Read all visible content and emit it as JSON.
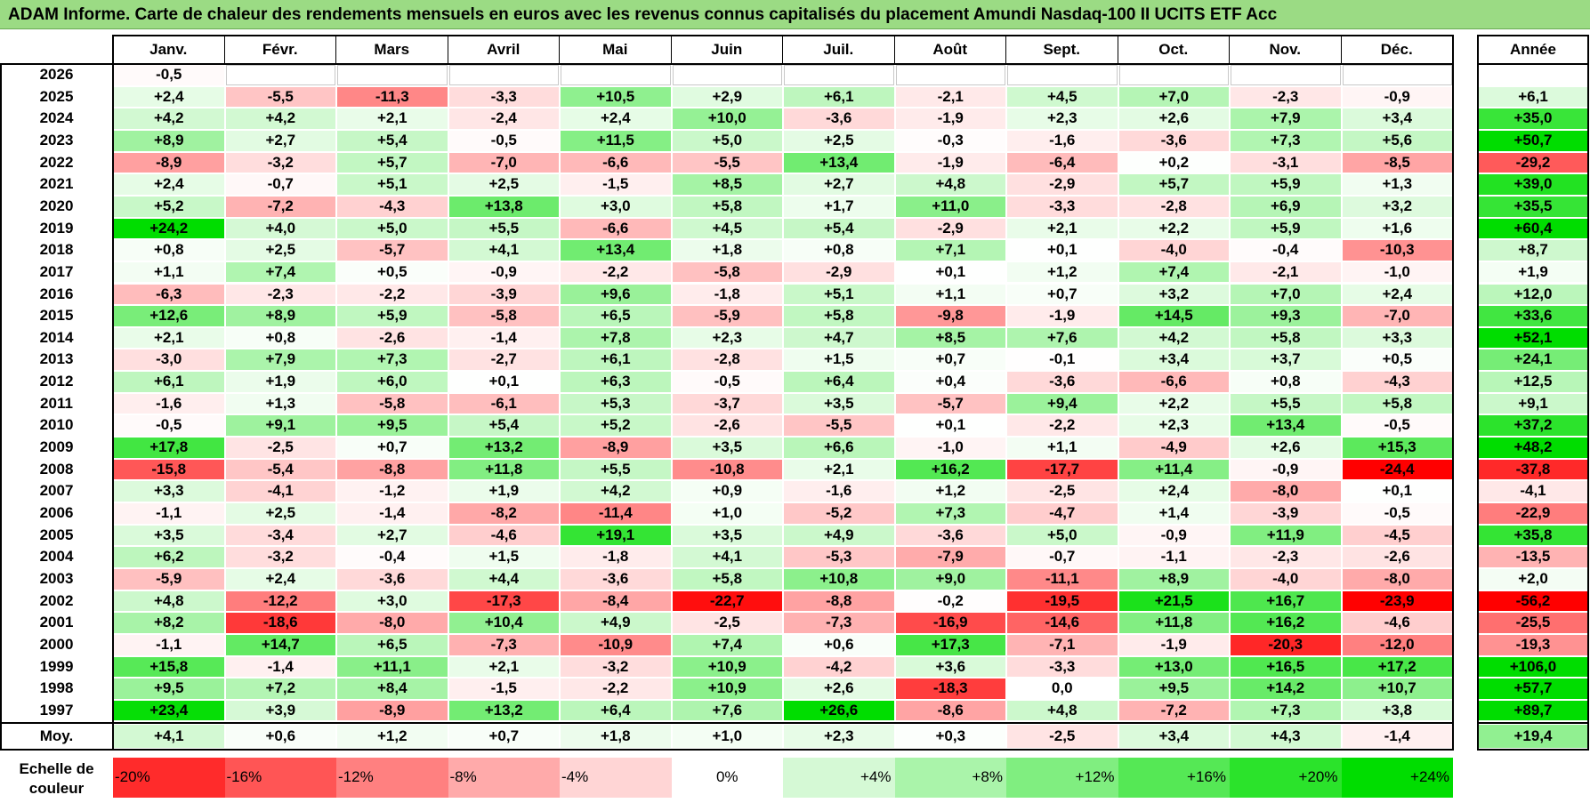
{
  "title": "ADAM Informe. Carte de chaleur des rendements mensuels en euros avec les revenus connus capitalisés du placement Amundi Nasdaq-100 II UCITS ETF Acc",
  "colors": {
    "positive_max": "#00dd00",
    "negative_max": "#ff0000",
    "neutral": "#ffffff",
    "title_bg": "#9bdb84"
  },
  "chart_data": {
    "type": "heatmap",
    "title": "ADAM Informe. Carte de chaleur des rendements mensuels en euros avec les revenus connus capitalisés du placement Amundi Nasdaq-100 II UCITS ETF Acc",
    "months": [
      "Janv.",
      "Févr.",
      "Mars",
      "Avril",
      "Mai",
      "Juin",
      "Juil.",
      "Août",
      "Sept.",
      "Oct.",
      "Nov.",
      "Déc."
    ],
    "year_label": "Année",
    "avg_label": "Moy.",
    "rows": [
      {
        "year": "2026",
        "months": [
          "-0,5",
          "",
          "",
          "",
          "",
          "",
          "",
          "",
          "",
          "",
          "",
          ""
        ],
        "annual": ""
      },
      {
        "year": "2025",
        "months": [
          "+2,4",
          "-5,5",
          "-11,3",
          "-3,3",
          "+10,5",
          "+2,9",
          "+6,1",
          "-2,1",
          "+4,5",
          "+7,0",
          "-2,3",
          "-0,9"
        ],
        "annual": "+6,1"
      },
      {
        "year": "2024",
        "months": [
          "+4,2",
          "+4,2",
          "+2,1",
          "-2,4",
          "+2,4",
          "+10,0",
          "-3,6",
          "-1,9",
          "+2,3",
          "+2,6",
          "+7,9",
          "+3,4"
        ],
        "annual": "+35,0"
      },
      {
        "year": "2023",
        "months": [
          "+8,9",
          "+2,7",
          "+5,4",
          "-0,5",
          "+11,5",
          "+5,0",
          "+2,5",
          "-0,3",
          "-1,6",
          "-3,6",
          "+7,3",
          "+5,6"
        ],
        "annual": "+50,7"
      },
      {
        "year": "2022",
        "months": [
          "-8,9",
          "-3,2",
          "+5,7",
          "-7,0",
          "-6,6",
          "-5,5",
          "+13,4",
          "-1,9",
          "-6,4",
          "+0,2",
          "-3,1",
          "-8,5"
        ],
        "annual": "-29,2"
      },
      {
        "year": "2021",
        "months": [
          "+2,4",
          "-0,7",
          "+5,1",
          "+2,5",
          "-1,5",
          "+8,5",
          "+2,7",
          "+4,8",
          "-2,9",
          "+5,7",
          "+5,9",
          "+1,3"
        ],
        "annual": "+39,0"
      },
      {
        "year": "2020",
        "months": [
          "+5,2",
          "-7,2",
          "-4,3",
          "+13,8",
          "+3,0",
          "+5,8",
          "+1,7",
          "+11,0",
          "-3,3",
          "-2,8",
          "+6,9",
          "+3,2"
        ],
        "annual": "+35,5"
      },
      {
        "year": "2019",
        "months": [
          "+24,2",
          "+4,0",
          "+5,0",
          "+5,5",
          "-6,6",
          "+4,5",
          "+5,4",
          "-2,9",
          "+2,1",
          "+2,2",
          "+5,9",
          "+1,6"
        ],
        "annual": "+60,4"
      },
      {
        "year": "2018",
        "months": [
          "+0,8",
          "+2,5",
          "-5,7",
          "+4,1",
          "+13,4",
          "+1,8",
          "+0,8",
          "+7,1",
          "+0,1",
          "-4,0",
          "-0,4",
          "-10,3"
        ],
        "annual": "+8,7"
      },
      {
        "year": "2017",
        "months": [
          "+1,1",
          "+7,4",
          "+0,5",
          "-0,9",
          "-2,2",
          "-5,8",
          "-2,9",
          "+0,1",
          "+1,2",
          "+7,4",
          "-2,1",
          "-1,0"
        ],
        "annual": "+1,9"
      },
      {
        "year": "2016",
        "months": [
          "-6,3",
          "-2,3",
          "-2,2",
          "-3,9",
          "+9,6",
          "-1,8",
          "+5,1",
          "+1,1",
          "+0,7",
          "+3,2",
          "+7,0",
          "+2,4"
        ],
        "annual": "+12,0"
      },
      {
        "year": "2015",
        "months": [
          "+12,6",
          "+8,9",
          "+5,9",
          "-5,8",
          "+6,5",
          "-5,9",
          "+5,8",
          "-9,8",
          "-1,9",
          "+14,5",
          "+9,3",
          "-7,0"
        ],
        "annual": "+33,6"
      },
      {
        "year": "2014",
        "months": [
          "+2,1",
          "+0,8",
          "-2,6",
          "-1,4",
          "+7,8",
          "+2,3",
          "+4,7",
          "+8,5",
          "+7,6",
          "+4,2",
          "+5,8",
          "+3,3"
        ],
        "annual": "+52,1"
      },
      {
        "year": "2013",
        "months": [
          "-3,0",
          "+7,9",
          "+7,3",
          "-2,7",
          "+6,1",
          "-2,8",
          "+1,5",
          "+0,7",
          "-0,1",
          "+3,4",
          "+3,7",
          "+0,5"
        ],
        "annual": "+24,1"
      },
      {
        "year": "2012",
        "months": [
          "+6,1",
          "+1,9",
          "+6,0",
          "+0,1",
          "+6,3",
          "-0,5",
          "+6,4",
          "+0,4",
          "-3,6",
          "-6,6",
          "+0,8",
          "-4,3"
        ],
        "annual": "+12,5"
      },
      {
        "year": "2011",
        "months": [
          "-1,6",
          "+1,3",
          "-5,8",
          "-6,1",
          "+5,3",
          "-3,7",
          "+3,5",
          "-5,7",
          "+9,4",
          "+2,2",
          "+5,5",
          "+5,8"
        ],
        "annual": "+9,1"
      },
      {
        "year": "2010",
        "months": [
          "-0,5",
          "+9,1",
          "+9,5",
          "+5,4",
          "+5,2",
          "-2,6",
          "-5,5",
          "+0,1",
          "-2,2",
          "+2,3",
          "+13,4",
          "-0,5"
        ],
        "annual": "+37,2"
      },
      {
        "year": "2009",
        "months": [
          "+17,8",
          "-2,5",
          "+0,7",
          "+13,2",
          "-8,9",
          "+3,5",
          "+6,6",
          "-1,0",
          "+1,1",
          "-4,9",
          "+2,6",
          "+15,3"
        ],
        "annual": "+48,2"
      },
      {
        "year": "2008",
        "months": [
          "-15,8",
          "-5,4",
          "-8,8",
          "+11,8",
          "+5,5",
          "-10,8",
          "+2,1",
          "+16,2",
          "-17,7",
          "+11,4",
          "-0,9",
          "-24,4"
        ],
        "annual": "-37,8"
      },
      {
        "year": "2007",
        "months": [
          "+3,3",
          "-4,1",
          "-1,2",
          "+1,9",
          "+4,2",
          "+0,9",
          "-1,6",
          "+1,2",
          "-2,5",
          "+2,4",
          "-8,0",
          "+0,1"
        ],
        "annual": "-4,1"
      },
      {
        "year": "2006",
        "months": [
          "-1,1",
          "+2,5",
          "-1,4",
          "-8,2",
          "-11,4",
          "+1,0",
          "-5,2",
          "+7,3",
          "-4,7",
          "+1,4",
          "-3,9",
          "-0,5"
        ],
        "annual": "-22,9"
      },
      {
        "year": "2005",
        "months": [
          "+3,5",
          "-3,4",
          "+2,7",
          "-4,6",
          "+19,1",
          "+3,5",
          "+4,9",
          "-3,6",
          "+5,0",
          "-0,9",
          "+11,9",
          "-4,5"
        ],
        "annual": "+35,8"
      },
      {
        "year": "2004",
        "months": [
          "+6,2",
          "-3,2",
          "-0,4",
          "+1,5",
          "-1,8",
          "+4,1",
          "-5,3",
          "-7,9",
          "-0,7",
          "-1,1",
          "-2,3",
          "-2,6"
        ],
        "annual": "-13,5"
      },
      {
        "year": "2003",
        "months": [
          "-5,9",
          "+2,4",
          "-3,6",
          "+4,4",
          "-3,6",
          "+5,8",
          "+10,8",
          "+9,0",
          "-11,1",
          "+8,9",
          "-4,0",
          "-8,0"
        ],
        "annual": "+2,0"
      },
      {
        "year": "2002",
        "months": [
          "+4,8",
          "-12,2",
          "+3,0",
          "-17,3",
          "-8,4",
          "-22,7",
          "-8,8",
          "-0,2",
          "-19,5",
          "+21,5",
          "+16,7",
          "-23,9"
        ],
        "annual": "-56,2"
      },
      {
        "year": "2001",
        "months": [
          "+8,2",
          "-18,6",
          "-8,0",
          "+10,4",
          "+4,9",
          "-2,5",
          "-7,3",
          "-16,9",
          "-14,6",
          "+11,8",
          "+16,2",
          "-4,6"
        ],
        "annual": "-25,5"
      },
      {
        "year": "2000",
        "months": [
          "-1,1",
          "+14,7",
          "+6,5",
          "-7,3",
          "-10,9",
          "+7,4",
          "+0,6",
          "+17,3",
          "-7,1",
          "-1,9",
          "-20,3",
          "-12,0"
        ],
        "annual": "-19,3"
      },
      {
        "year": "1999",
        "months": [
          "+15,8",
          "-1,4",
          "+11,1",
          "+2,1",
          "-3,2",
          "+10,9",
          "-4,2",
          "+3,6",
          "-3,3",
          "+13,0",
          "+16,5",
          "+17,2"
        ],
        "annual": "+106,0"
      },
      {
        "year": "1998",
        "months": [
          "+9,5",
          "+7,2",
          "+8,4",
          "-1,5",
          "-2,2",
          "+10,9",
          "+2,6",
          "-18,3",
          "0,0",
          "+9,5",
          "+14,2",
          "+10,7"
        ],
        "annual": "+57,7"
      },
      {
        "year": "1997",
        "months": [
          "+23,4",
          "+3,9",
          "-8,9",
          "+13,2",
          "+6,4",
          "+7,6",
          "+26,6",
          "-8,6",
          "+4,8",
          "-7,2",
          "+7,3",
          "+3,8"
        ],
        "annual": "+89,7"
      }
    ],
    "average": {
      "months": [
        "+4,1",
        "+0,6",
        "+1,2",
        "+0,7",
        "+1,8",
        "+1,0",
        "+2,3",
        "+0,3",
        "-2,5",
        "+3,4",
        "+4,3",
        "-1,4"
      ],
      "annual": "+19,4"
    },
    "legend": {
      "label": "Echelle de couleur",
      "stops": [
        "-20%",
        "-16%",
        "-12%",
        "-8%",
        "-4%",
        "0%",
        "+4%",
        "+8%",
        "+12%",
        "+16%",
        "+20%",
        "+24%"
      ]
    }
  }
}
